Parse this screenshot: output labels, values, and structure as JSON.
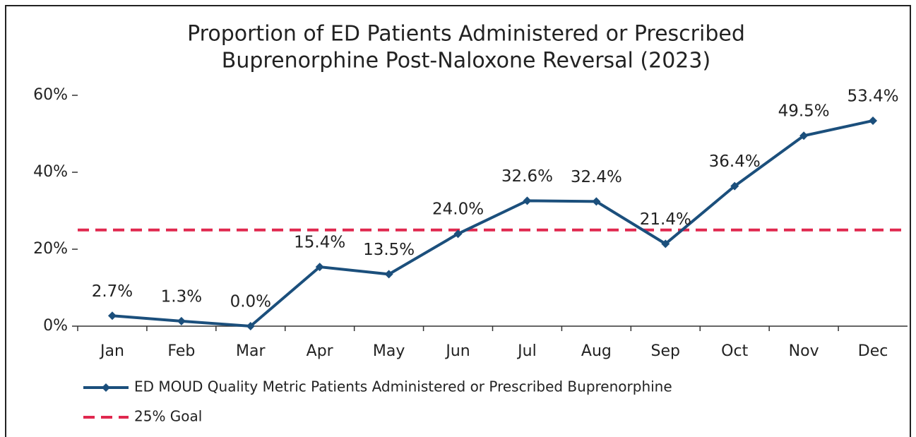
{
  "chart_data": {
    "type": "line",
    "title": [
      "Proportion of ED Patients Administered or Prescribed",
      "Buprenorphine Post-Naloxone Reversal (2023)"
    ],
    "categories": [
      "Jan",
      "Feb",
      "Mar",
      "Apr",
      "May",
      "Jun",
      "Jul",
      "Aug",
      "Sep",
      "Oct",
      "Nov",
      "Dec"
    ],
    "series": [
      {
        "name": "ED MOUD Quality Metric Patients Administered or Prescribed Buprenorphine",
        "color": "#1b4f7c",
        "values": [
          2.7,
          1.3,
          0.0,
          15.4,
          13.5,
          24.0,
          32.6,
          32.4,
          21.4,
          36.4,
          49.5,
          53.4
        ],
        "value_labels": [
          "2.7%",
          "1.3%",
          "0.0%",
          "15.4%",
          "13.5%",
          "24.0%",
          "32.6%",
          "32.4%",
          "21.4%",
          "36.4%",
          "49.5%",
          "53.4%"
        ]
      }
    ],
    "reference_line": {
      "name": "25% Goal",
      "value": 25,
      "color": "#e0284f",
      "dashed": true
    },
    "ylim": [
      0,
      60
    ],
    "yticks": [
      {
        "value": 0,
        "label": "0%"
      },
      {
        "value": 20,
        "label": "20%"
      },
      {
        "value": 40,
        "label": "40%"
      },
      {
        "value": 60,
        "label": "60%"
      }
    ]
  }
}
